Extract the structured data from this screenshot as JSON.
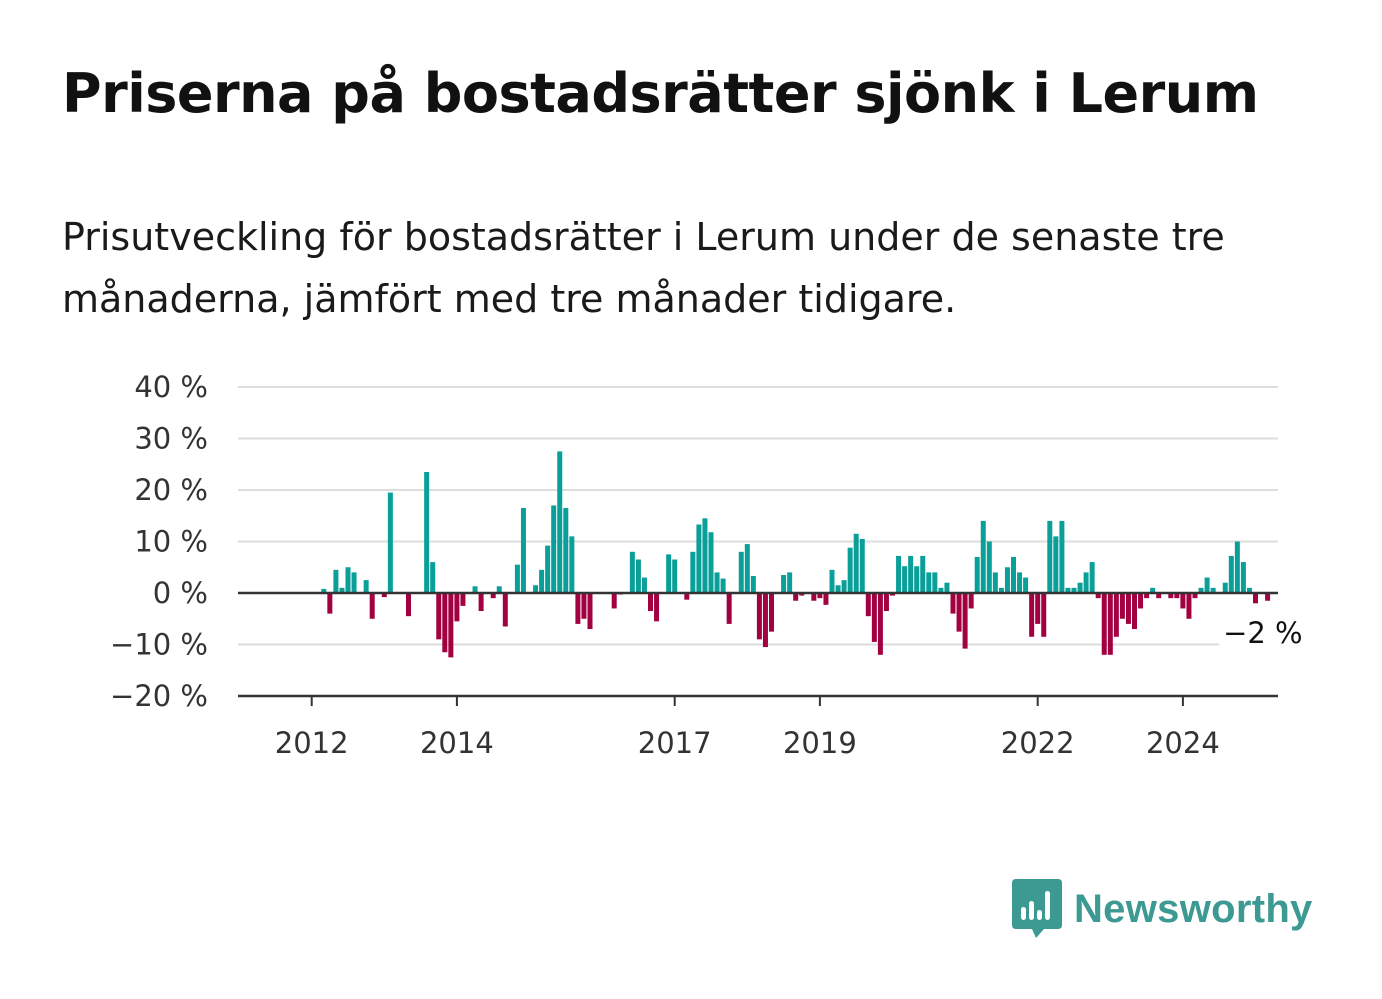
{
  "title": "Priserna på bostadsrätter sjönk i Lerum",
  "subtitle": "Prisutveckling för bostadsrätter i Lerum under de senaste tre månaderna, jämfört med tre månader tidigare.",
  "logo": {
    "text": "Newsworthy",
    "icon": "bar-chart-speech-bubble-icon"
  },
  "colors": {
    "positive": "#0a9f98",
    "negative": "#a30041",
    "grid": "#dddddd",
    "axis": "#333333",
    "logo": "#3c9a92"
  },
  "chart_data": {
    "type": "bar",
    "unit": "%",
    "ylim": [
      -20,
      40
    ],
    "yticks": [
      -20,
      -10,
      0,
      10,
      20,
      30,
      40
    ],
    "ytick_labels": [
      "−20 %",
      "−10 %",
      "0 %",
      "10 %",
      "20 %",
      "30 %",
      "40 %"
    ],
    "xticks": [
      "2012",
      "2014",
      "2017",
      "2019",
      "2022",
      "2024"
    ],
    "x_start": "2011-09",
    "grid": true,
    "last_value_label": "−2 %",
    "values": [
      0,
      0,
      0,
      0,
      0,
      0,
      0.8,
      -4,
      4.5,
      1,
      5,
      4,
      0,
      2.5,
      -5,
      0,
      -0.8,
      19.5,
      0,
      0,
      -4.5,
      0,
      0,
      23.5,
      6,
      -9,
      -11.5,
      -12.5,
      -5.5,
      -2.5,
      0,
      1.3,
      -3.5,
      0,
      -1,
      1.3,
      -6.5,
      0,
      5.5,
      16.5,
      0,
      1.5,
      4.5,
      9.2,
      17,
      27.5,
      16.5,
      11,
      -6,
      -5,
      -7,
      0,
      0,
      0,
      -3,
      -0.3,
      0,
      8,
      6.5,
      3,
      -3.5,
      -5.5,
      0,
      7.5,
      6.5,
      0,
      -1.3,
      8,
      13.3,
      14.5,
      11.8,
      4,
      2.8,
      -6,
      0,
      8,
      9.5,
      3.3,
      -9,
      -10.5,
      -7.5,
      0,
      3.5,
      4,
      -1.5,
      -0.5,
      0,
      -1.5,
      -1,
      -2.3,
      4.5,
      1.5,
      2.5,
      8.8,
      11.5,
      10.5,
      -4.5,
      -9.5,
      -12,
      -3.5,
      -0.5,
      7.2,
      5.2,
      7.2,
      5.2,
      7.2,
      4,
      4,
      1,
      2,
      -4,
      -7.5,
      -10.8,
      -3,
      7,
      14,
      10,
      4,
      1,
      5,
      7,
      4,
      3,
      -8.5,
      -6,
      -8.5,
      14,
      11,
      14,
      1,
      1,
      2,
      4,
      6,
      -1,
      -12,
      -12,
      -8.5,
      -5,
      -6,
      -7,
      -3,
      -1,
      1,
      -1,
      0,
      -1,
      -1,
      -3,
      -5,
      -1,
      1,
      3,
      1,
      0,
      2,
      7.2,
      10,
      6,
      1,
      -2,
      0,
      -1.5
    ],
    "series": [
      {
        "values_ref": "values"
      }
    ]
  }
}
